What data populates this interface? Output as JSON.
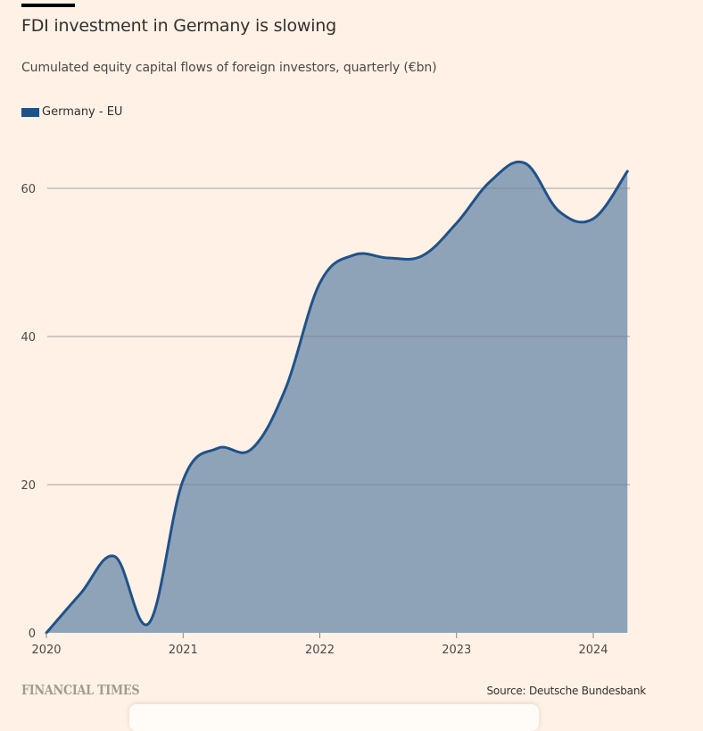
{
  "header": {
    "title": "FDI investment in Germany is slowing",
    "subtitle": "Cumulated equity capital flows of foreign investors, quarterly (€bn)"
  },
  "legend": [
    {
      "label": "Germany - EU",
      "color": "#1F528A"
    }
  ],
  "footer": {
    "brand": "FINANCIAL TIMES",
    "source": "Source: Deutsche Bundesbank"
  },
  "colors": {
    "background": "#FFF1E5",
    "line": "#1F528A",
    "area": "#8FA3B8",
    "grid": "#CEC6B9",
    "text": "#33302E"
  },
  "chart_data": {
    "type": "area",
    "title": "FDI investment in Germany is slowing",
    "subtitle": "Cumulated equity capital flows of foreign investors, quarterly (€bn)",
    "xlabel": "",
    "ylabel": "",
    "x": [
      2020.0,
      2020.25,
      2020.5,
      2020.75,
      2021.0,
      2021.25,
      2021.5,
      2021.75,
      2022.0,
      2022.25,
      2022.5,
      2022.75,
      2023.0,
      2023.25,
      2023.5,
      2023.75,
      2024.0,
      2024.25
    ],
    "series": [
      {
        "name": "Germany - EU",
        "values": [
          0,
          5.3,
          10.3,
          1.3,
          20.6,
          24.9,
          24.8,
          33.0,
          47.2,
          51.0,
          50.6,
          50.9,
          55.3,
          61.0,
          63.4,
          56.9,
          55.9,
          62.3
        ]
      }
    ],
    "xlim": [
      2020,
      2024.25
    ],
    "ylim": [
      0,
      60
    ],
    "x_ticks": [
      2020,
      2021,
      2022,
      2023,
      2024
    ],
    "x_tick_labels": [
      "2020",
      "2021",
      "2022",
      "2023",
      "2024"
    ],
    "y_ticks": [
      0,
      20,
      40,
      60
    ],
    "y_tick_labels": [
      "0",
      "20",
      "40",
      "60"
    ],
    "grid": true,
    "legend_position": "top-left"
  }
}
